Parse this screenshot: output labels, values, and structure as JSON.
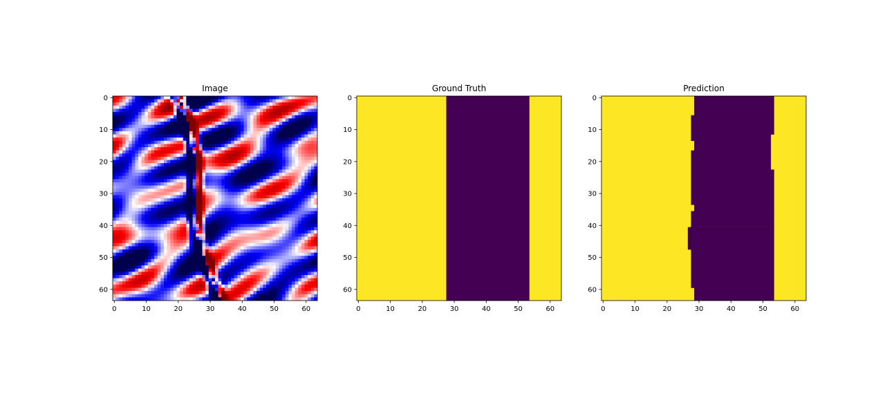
{
  "chart_data": [
    {
      "type": "heatmap",
      "title": "Image",
      "colormap": "seismic",
      "colors": {
        "negative": "#0000ff",
        "zero": "#ffffff",
        "positive": "#ff0000",
        "deep_negative": "#00004c",
        "deep_positive": "#800000"
      },
      "shape": [
        64,
        64
      ],
      "xlim": [
        -0.5,
        63.5
      ],
      "ylim": [
        63.5,
        -0.5
      ],
      "xticks": [
        0,
        10,
        20,
        30,
        40,
        50,
        60
      ],
      "yticks": [
        0,
        10,
        20,
        30,
        40,
        50,
        60
      ],
      "fault_trace": {
        "x_at_row0": 20,
        "x_at_row63": 32
      },
      "value_range": [
        -1,
        1
      ]
    },
    {
      "type": "heatmap",
      "title": "Ground Truth",
      "colormap": "viridis",
      "colors": {
        "class_0": "#440154",
        "class_1": "#fde725"
      },
      "shape": [
        64,
        64
      ],
      "xlim": [
        -0.5,
        63.5
      ],
      "ylim": [
        63.5,
        -0.5
      ],
      "xticks": [
        0,
        10,
        20,
        30,
        40,
        50,
        60
      ],
      "yticks": [
        0,
        10,
        20,
        30,
        40,
        50,
        60
      ],
      "regions": [
        {
          "rows": [
            0,
            63
          ],
          "class_0_columns": [
            28,
            53
          ]
        }
      ]
    },
    {
      "type": "heatmap",
      "title": "Prediction",
      "colormap": "viridis",
      "colors": {
        "class_0": "#440154",
        "class_1": "#fde725"
      },
      "shape": [
        64,
        64
      ],
      "xlim": [
        -0.5,
        63.5
      ],
      "ylim": [
        63.5,
        -0.5
      ],
      "xticks": [
        0,
        10,
        20,
        30,
        40,
        50,
        60
      ],
      "yticks": [
        0,
        10,
        20,
        30,
        40,
        50,
        60
      ],
      "regions": [
        {
          "rows": [
            0,
            5
          ],
          "class_0_columns": [
            29,
            53
          ]
        },
        {
          "rows": [
            6,
            11
          ],
          "class_0_columns": [
            28,
            53
          ]
        },
        {
          "rows": [
            12,
            13
          ],
          "class_0_columns": [
            28,
            52
          ]
        },
        {
          "rows": [
            14,
            16
          ],
          "class_0_columns": [
            29,
            52
          ]
        },
        {
          "rows": [
            17,
            22
          ],
          "class_0_columns": [
            28,
            52
          ]
        },
        {
          "rows": [
            23,
            33
          ],
          "class_0_columns": [
            28,
            53
          ]
        },
        {
          "rows": [
            34,
            35
          ],
          "class_0_columns": [
            29,
            53
          ]
        },
        {
          "rows": [
            36,
            40
          ],
          "class_0_columns": [
            28,
            53
          ]
        },
        {
          "rows": [
            41,
            47
          ],
          "class_0_columns": [
            27,
            53
          ]
        },
        {
          "rows": [
            48,
            59
          ],
          "class_0_columns": [
            28,
            53
          ]
        },
        {
          "rows": [
            60,
            63
          ],
          "class_0_columns": [
            29,
            53
          ]
        }
      ]
    }
  ]
}
